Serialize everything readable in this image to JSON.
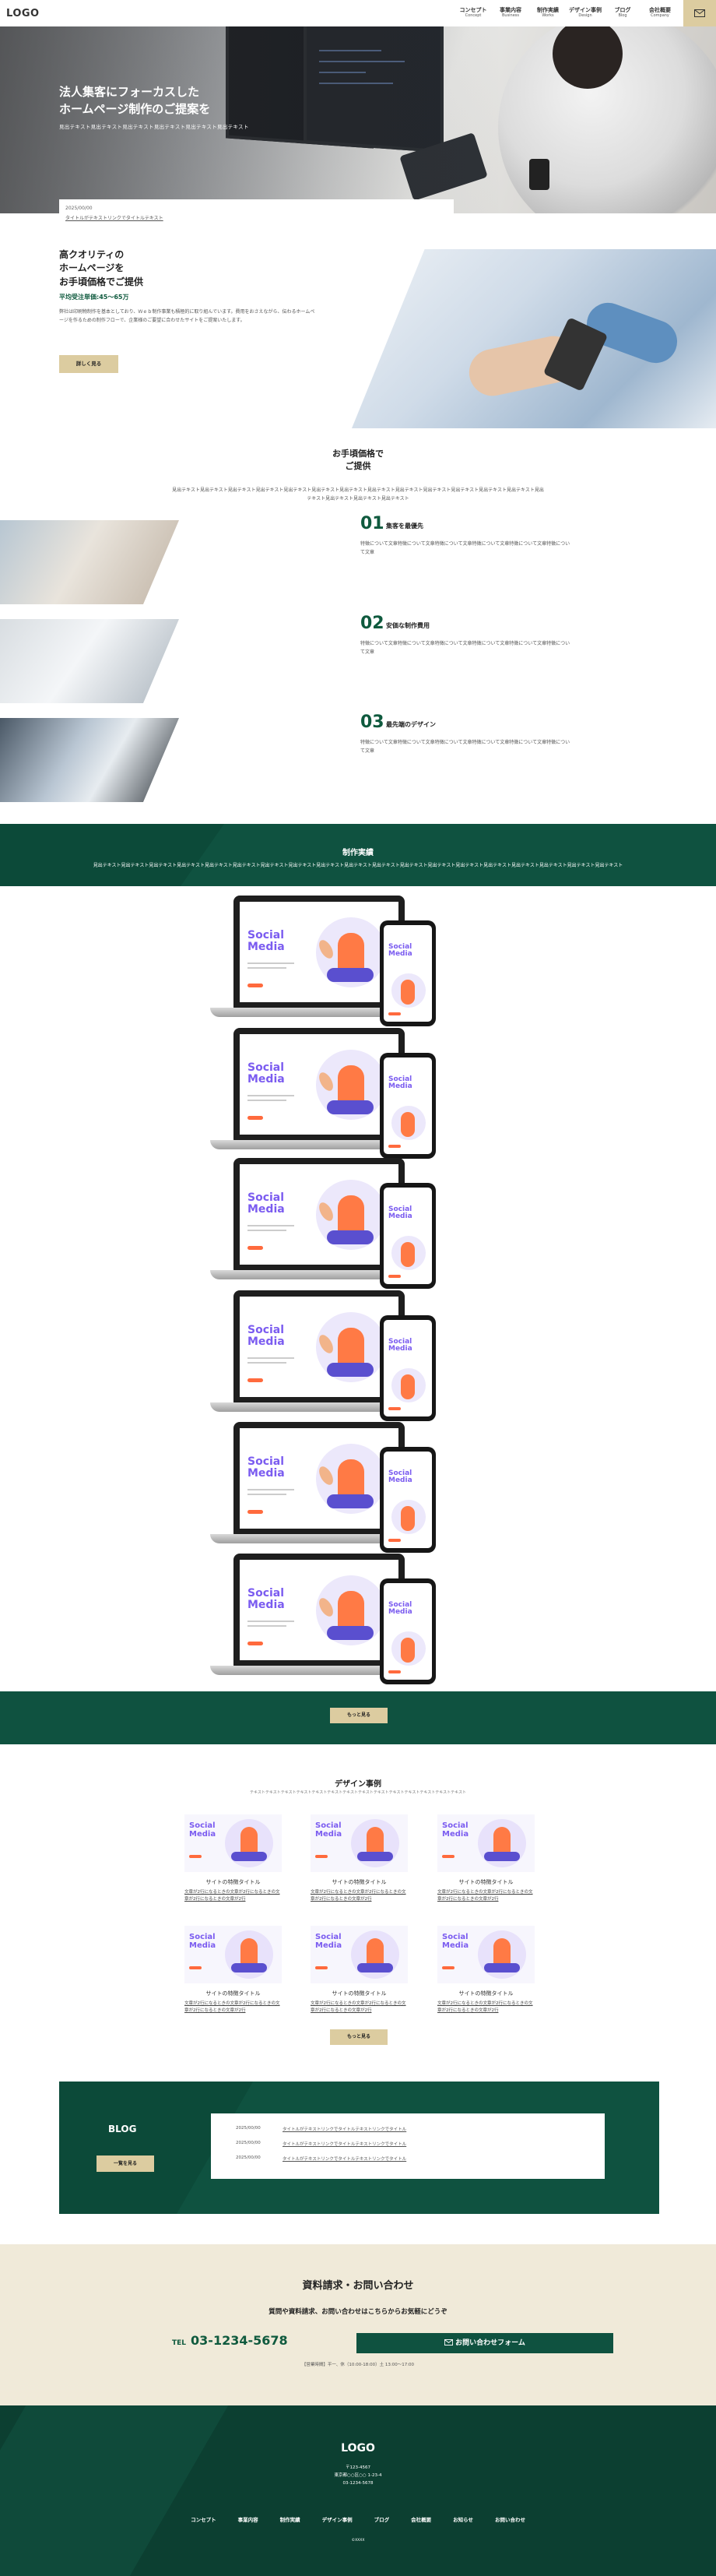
{
  "header": {
    "logo": "LOGO",
    "nav": [
      {
        "jp": "コンセプト",
        "en": "Concept"
      },
      {
        "jp": "事業内容",
        "en": "Business"
      },
      {
        "jp": "制作実績",
        "en": "Works"
      },
      {
        "jp": "デザイン事例",
        "en": "Design"
      },
      {
        "jp": "ブログ",
        "en": "Blog"
      },
      {
        "jp": "会社概要",
        "en": "Company"
      }
    ],
    "mail_icon": "mail-icon"
  },
  "hero": {
    "title_line1": "法人集客にフォーカスした",
    "title_line2": "ホームページ制作のご提案を",
    "subtitle": "見出テキスト見出テキスト見出テキスト見出テキスト見出テキスト見出テキスト",
    "news_date": "2025/00/00",
    "news_title": "タイトルがテキストリンクでタイトルテキスト"
  },
  "intro": {
    "title_line1": "高クオリティの",
    "title_line2": "ホームページを",
    "title_line3": "お手頃価格でご提供",
    "price": "平均受注単価:45〜65万",
    "text": "弊社は印刷物制作を基本としており、Ｗｅｂ制作事業も積極的に取り組んでいます。費用をおさえながら、伝わるホームページを作るための制作フローで、企業様のご要望に合わせたサイトをご提案いたします。",
    "button": "詳しく見る"
  },
  "features": {
    "title_line1": "お手頃価格で",
    "title_line2": "ご提供",
    "lead": "見出テキスト見出テキスト見出テキスト見出テキスト見出テキスト見出テキスト見出テキスト見出テキスト見出テキスト見出テキスト見出テキスト見出テキスト見出テキスト見出テキスト見出テキスト見出テキスト見出テキスト",
    "items": [
      {
        "num": "01",
        "label": "集客を最優先",
        "text": "特徴について文章特徴について文章特徴について文章特徴について文章特徴について文章特徴について文章"
      },
      {
        "num": "02",
        "label": "安価な制作費用",
        "text": "特徴について文章特徴について文章特徴について文章特徴について文章特徴について文章特徴について文章"
      },
      {
        "num": "03",
        "label": "最先端のデザイン",
        "text": "特徴について文章特徴について文章特徴について文章特徴について文章特徴について文章特徴について文章"
      }
    ]
  },
  "works": {
    "title": "制作実績",
    "lead": "見出テキスト見出テキスト見出テキスト見出テキスト見出テキスト見出テキスト見出テキスト見出テキスト見出テキスト見出テキスト見出テキスト見出テキスト見出テキスト見出テキスト見出テキスト見出テキスト見出テキスト見出テキスト見出テキスト",
    "mock_title_1": "Social",
    "mock_title_2": "Media",
    "button": "もっと見る"
  },
  "design": {
    "title": "デザイン事例",
    "lead": "テキストテキストテキストテキストテキストテキストテキストテキストテキストテキストテキストテキストテキストテキスト",
    "cards": [
      {
        "title": "サイトの特徴タイトル",
        "desc": "文章が2行になるときの文章が2行になるときの文章が2行になるときの文章が2行"
      },
      {
        "title": "サイトの特徴タイトル",
        "desc": "文章が2行になるときの文章が2行になるときの文章が2行になるときの文章が2行"
      },
      {
        "title": "サイトの特徴タイトル",
        "desc": "文章が2行になるときの文章が2行になるときの文章が2行になるときの文章が2行"
      },
      {
        "title": "サイトの特徴タイトル",
        "desc": "文章が2行になるときの文章が2行になるときの文章が2行になるときの文章が2行"
      },
      {
        "title": "サイトの特徴タイトル",
        "desc": "文章が2行になるときの文章が2行になるときの文章が2行になるときの文章が2行"
      },
      {
        "title": "サイトの特徴タイトル",
        "desc": "文章が2行になるときの文章が2行になるときの文章が2行になるときの文章が2行"
      }
    ],
    "button": "もっと見る"
  },
  "blog": {
    "title": "BLOG",
    "button": "一覧を見る",
    "posts": [
      {
        "date": "2025/00/00",
        "title": "タイトルがテキストリンクでタイトルテキストリンクでタイトル"
      },
      {
        "date": "2025/00/00",
        "title": "タイトルがテキストリンクでタイトルテキストリンクでタイトル"
      },
      {
        "date": "2025/00/00",
        "title": "タイトルがテキストリンクでタイトルテキストリンクでタイトル"
      }
    ]
  },
  "contact": {
    "title": "資料請求・お問い合わせ",
    "subtitle": "質問や資料請求、お問い合わせはこちらからお気軽にどうぞ",
    "tel_label": "TEL",
    "tel": "03-1234-5678",
    "form_button": "お問い合わせフォーム",
    "hours": "【営業時間】平一、休（10:00-18:00）土 13:00〜17:00"
  },
  "footer": {
    "logo": "LOGO",
    "addr1": "〒123-4567",
    "addr2": "東京都○○区○○ 1-23-4",
    "addr3": "03-1234-5678",
    "nav": [
      "コンセプト",
      "事業内容",
      "制作実績",
      "デザイン事例",
      "ブログ",
      "会社概要",
      "お知らせ",
      "お問い合わせ"
    ],
    "copyright": "©XXXX"
  },
  "colors": {
    "green": "#0f5240",
    "gold": "#dccca0",
    "cream": "#f0ead9"
  }
}
